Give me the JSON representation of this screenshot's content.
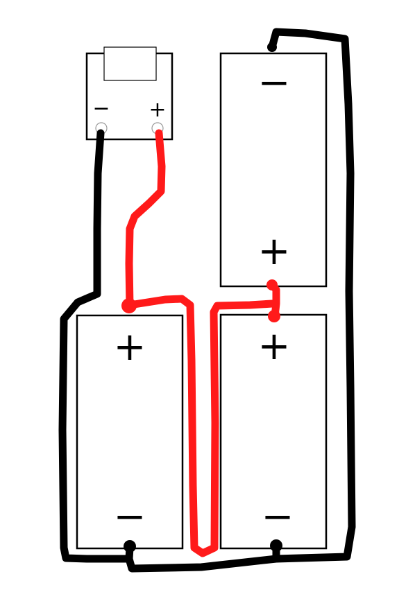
{
  "colors": {
    "negative_wire": "#000000",
    "positive_wire": "#ff1a1a"
  },
  "device": {
    "minus_label": "−",
    "plus_label": "+"
  },
  "batteries": [
    {
      "id": "top-right",
      "plus_label": "+",
      "minus_label": "−"
    },
    {
      "id": "bottom-left",
      "plus_label": "+",
      "minus_label": "−"
    },
    {
      "id": "bottom-right",
      "plus_label": "+",
      "minus_label": "−"
    }
  ]
}
